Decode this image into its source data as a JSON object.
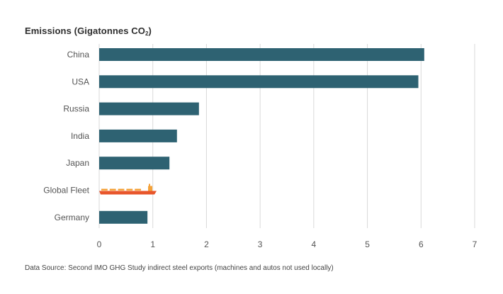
{
  "chart_data": {
    "type": "bar",
    "orientation": "horizontal",
    "title_prefix": "Emissions (Gigatonnes CO",
    "title_sub": "2",
    "title_suffix": ")",
    "categories": [
      "China",
      "USA",
      "Russia",
      "India",
      "Japan",
      "Global Fleet",
      "Germany"
    ],
    "values": [
      6.06,
      5.95,
      1.86,
      1.45,
      1.31,
      1.07,
      0.9
    ],
    "highlight_category": "Global Fleet",
    "highlight_icon": "ship-icon",
    "xlim": [
      0,
      7
    ],
    "xticks": [
      0,
      1,
      2,
      3,
      4,
      5,
      6,
      7
    ],
    "grid": true,
    "colors": {
      "bar": "#2e6272",
      "grid": "#d9d9d9",
      "ship_hull": "#e8562b",
      "ship_top": "#f4a23a"
    }
  },
  "footer": "Data Source: Second IMO GHG Study indirect steel exports (machines and autos not used locally)"
}
